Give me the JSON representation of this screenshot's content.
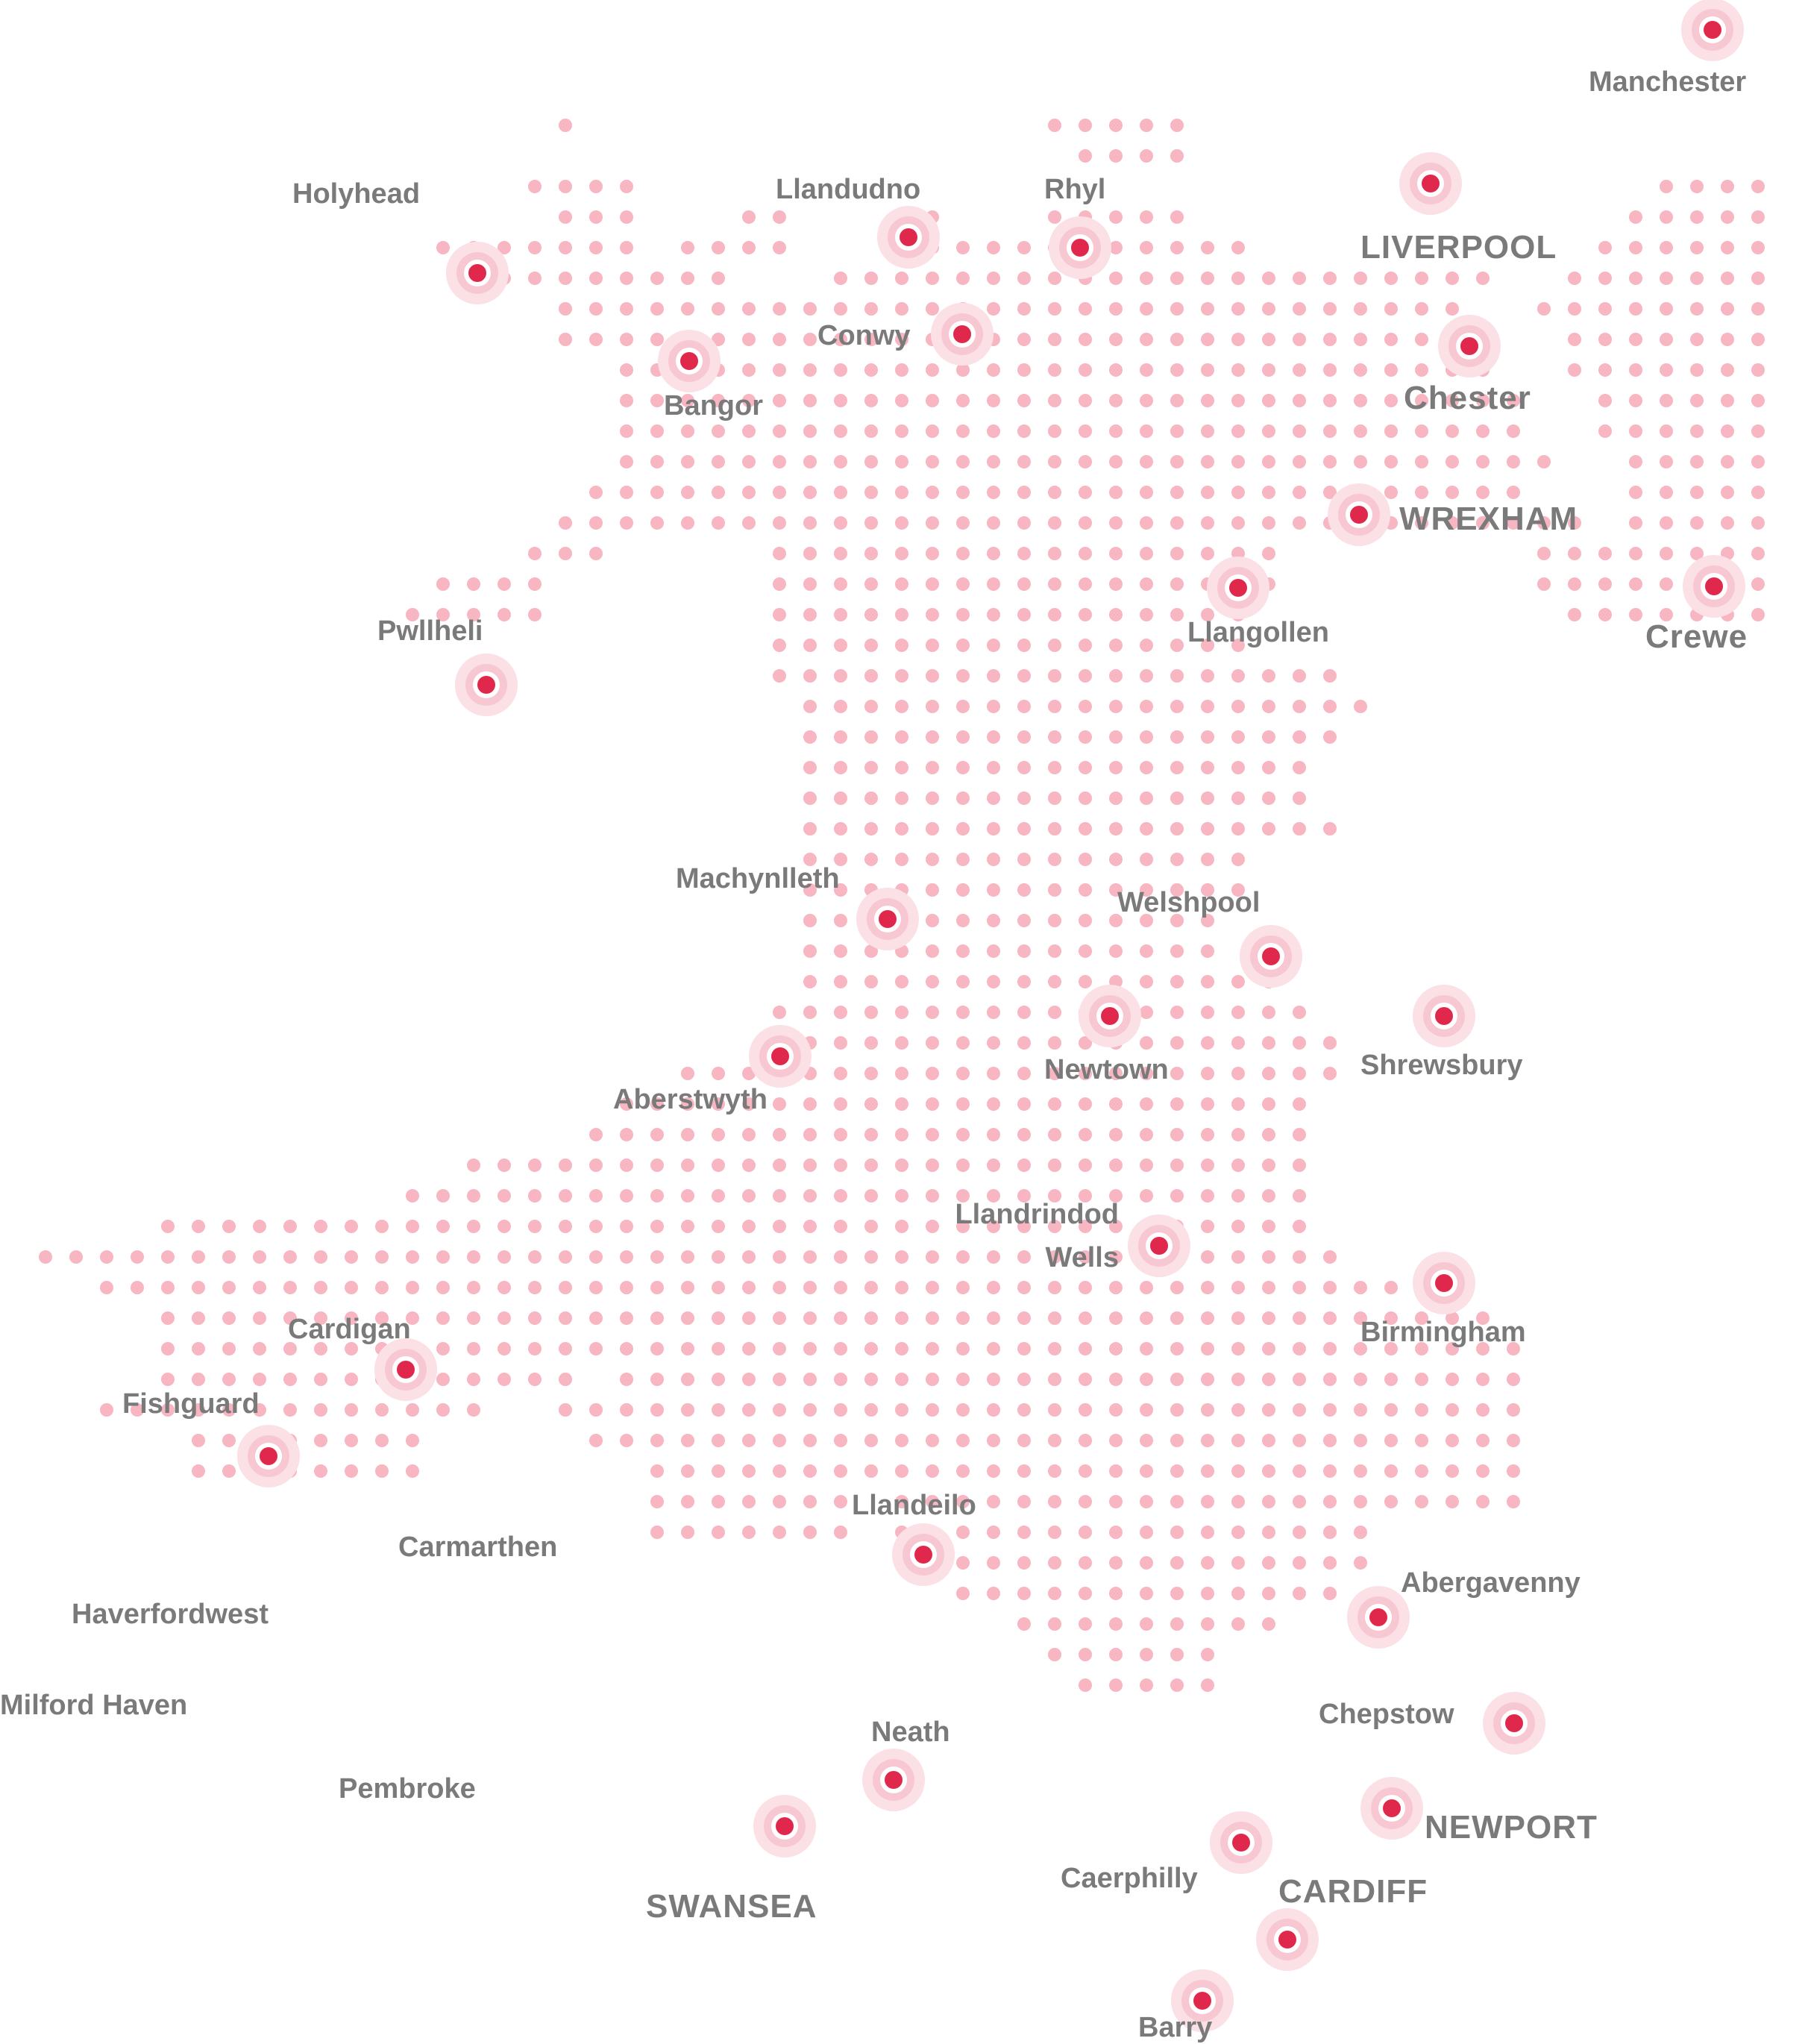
{
  "map": {
    "region": "Wales",
    "dot_color": "#f7b6c2",
    "marker_color": "#e0284c",
    "halo_color": "#fbe0e6",
    "label_color": "#7a7a7a"
  },
  "cities": [
    {
      "id": "manchester",
      "name": "Manchester",
      "size": "small"
    },
    {
      "id": "holyhead",
      "name": "Holyhead",
      "size": "small"
    },
    {
      "id": "llandudno",
      "name": "Llandudno",
      "size": "small"
    },
    {
      "id": "rhyl",
      "name": "Rhyl",
      "size": "small"
    },
    {
      "id": "liverpool",
      "name": "LIVERPOOL",
      "size": "big"
    },
    {
      "id": "conwy",
      "name": "Conwy",
      "size": "small"
    },
    {
      "id": "bangor",
      "name": "Bangor",
      "size": "small"
    },
    {
      "id": "chester",
      "name": "Chester",
      "size": "big"
    },
    {
      "id": "wrexham",
      "name": "WREXHAM",
      "size": "big"
    },
    {
      "id": "pwllheli",
      "name": "Pwllheli",
      "size": "small"
    },
    {
      "id": "llangollen",
      "name": "Llangollen",
      "size": "small"
    },
    {
      "id": "crewe",
      "name": "Crewe",
      "size": "big"
    },
    {
      "id": "machynlleth",
      "name": "Machynlleth",
      "size": "small"
    },
    {
      "id": "welshpool",
      "name": "Welshpool",
      "size": "small"
    },
    {
      "id": "shrewsbury",
      "name": "Shrewsbury",
      "size": "small"
    },
    {
      "id": "newtown",
      "name": "Newtown",
      "size": "small"
    },
    {
      "id": "aberystwyth",
      "name": "Aberstwyth",
      "size": "small"
    },
    {
      "id": "llandrindod",
      "name": "Llandrindod Wells",
      "size": "small"
    },
    {
      "id": "birmingham",
      "name": "Birmingham",
      "size": "small"
    },
    {
      "id": "cardigan",
      "name": "Cardigan",
      "size": "small"
    },
    {
      "id": "fishguard",
      "name": "Fishguard",
      "size": "small"
    },
    {
      "id": "llandeilo",
      "name": "Llandeilo",
      "size": "small"
    },
    {
      "id": "carmarthen",
      "name": "Carmarthen",
      "size": "small"
    },
    {
      "id": "haverfordwest",
      "name": "Haverfordwest",
      "size": "small"
    },
    {
      "id": "abergavenny",
      "name": "Abergavenny",
      "size": "small"
    },
    {
      "id": "milford-haven",
      "name": "Milford Haven",
      "size": "small"
    },
    {
      "id": "chepstow",
      "name": "Chepstow",
      "size": "small"
    },
    {
      "id": "neath",
      "name": "Neath",
      "size": "small"
    },
    {
      "id": "pembroke",
      "name": "Pembroke",
      "size": "small"
    },
    {
      "id": "newport",
      "name": "NEWPORT",
      "size": "big"
    },
    {
      "id": "swansea",
      "name": "SWANSEA",
      "size": "big"
    },
    {
      "id": "caerphilly",
      "name": "Caerphilly",
      "size": "small"
    },
    {
      "id": "cardiff",
      "name": "CARDIFF",
      "size": "big"
    },
    {
      "id": "barry",
      "name": "Barry",
      "size": "small"
    }
  ]
}
